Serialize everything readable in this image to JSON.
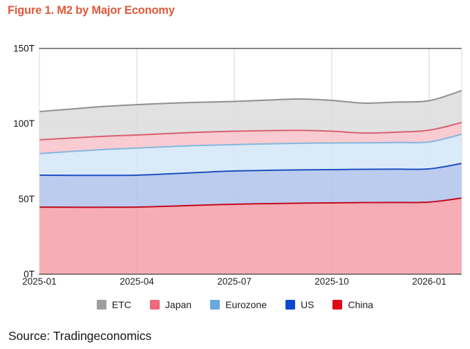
{
  "header": {
    "title": "Figure 1. M2 by Major Economy",
    "title_color": "#e0593a"
  },
  "footer": {
    "source": "Source: Tradingeconomics"
  },
  "chart_data": {
    "type": "area",
    "stacked": true,
    "title": "M2 by Major Economy",
    "values_unit": "trillion (T)",
    "grid": true,
    "legend_position": "bottom",
    "ylim": [
      0,
      150
    ],
    "y_ticks": [
      {
        "value": 0,
        "label": "0T"
      },
      {
        "value": 50,
        "label": "50T"
      },
      {
        "value": 100,
        "label": "100T"
      },
      {
        "value": 150,
        "label": "150T"
      }
    ],
    "x": [
      "2025-01",
      "2025-02",
      "2025-03",
      "2025-04",
      "2025-05",
      "2025-06",
      "2025-07",
      "2025-08",
      "2025-09",
      "2025-10",
      "2025-11",
      "2025-12",
      "2026-01",
      "2026-02"
    ],
    "x_tick_labels": [
      "2025-01",
      "2025-04",
      "2025-07",
      "2025-10",
      "2026-01"
    ],
    "x_tick_indices": [
      0,
      3,
      6,
      9,
      12
    ],
    "stack_order_bottom_to_top": [
      "China",
      "US",
      "Eurozone",
      "Japan",
      "ETC"
    ],
    "legend_order": [
      "ETC",
      "Japan",
      "Eurozone",
      "US",
      "China"
    ],
    "series": [
      {
        "name": "China",
        "values": [
          44.6,
          44.5,
          44.5,
          44.6,
          45.2,
          45.9,
          46.5,
          46.9,
          47.2,
          47.4,
          47.6,
          47.7,
          47.9,
          50.6
        ],
        "line_color": "#bf0a1e",
        "fill_color": "#f59fa8",
        "legend_color": "#e00718"
      },
      {
        "name": "US",
        "values": [
          21.2,
          21.2,
          21.2,
          21.2,
          21.5,
          21.8,
          22.1,
          22.1,
          22.1,
          22.1,
          22.1,
          22.1,
          22.1,
          23.0
        ],
        "line_color": "#1c50c0",
        "fill_color": "#b0c3ec",
        "legend_color": "#0d47d0"
      },
      {
        "name": "Eurozone",
        "values": [
          14.3,
          15.9,
          17.2,
          18.0,
          18.1,
          17.9,
          17.5,
          17.6,
          17.7,
          17.7,
          17.6,
          17.7,
          17.9,
          19.4
        ],
        "line_color": "#85b7dd",
        "fill_color": "#d3e6f7",
        "legend_color": "#69a8dc"
      },
      {
        "name": "Japan",
        "values": [
          9.2,
          8.9,
          8.8,
          8.7,
          8.7,
          8.8,
          8.9,
          8.8,
          8.6,
          7.8,
          6.5,
          6.9,
          7.8,
          7.8
        ],
        "line_color": "#d95f72",
        "fill_color": "#f7c3ca",
        "legend_color": "#ec6a7c"
      },
      {
        "name": "ETC",
        "values": [
          18.8,
          19.3,
          19.8,
          20.2,
          20.1,
          19.9,
          19.8,
          20.3,
          20.8,
          20.5,
          19.9,
          20.0,
          19.6,
          21.2
        ],
        "line_color": "#8f8f8f",
        "fill_color": "#dcdcdc",
        "legend_color": "#9e9e9e"
      }
    ]
  }
}
